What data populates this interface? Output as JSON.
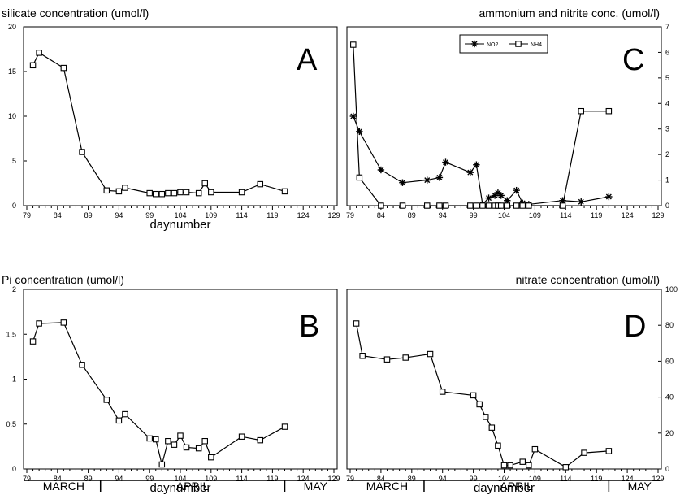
{
  "chart_data": [
    {
      "id": "A",
      "type": "line",
      "panel_label": "A",
      "title": "silicate concentration (umol/l)",
      "xlabel": "daynumber",
      "ylabel": "",
      "xlim": [
        79,
        129
      ],
      "ylim": [
        0,
        20
      ],
      "xticks": [
        79,
        84,
        89,
        94,
        99,
        104,
        109,
        114,
        119,
        124,
        129
      ],
      "yticks": [
        0,
        5,
        10,
        15,
        20
      ],
      "ytick_labels": [
        "0",
        "5",
        "10",
        "15",
        "20"
      ],
      "grid": false,
      "series": [
        {
          "marker": "square",
          "x": [
            80,
            81,
            85,
            88,
            92,
            94,
            95,
            99,
            100,
            101,
            102,
            103,
            104,
            105,
            107,
            108,
            109,
            114,
            117,
            121
          ],
          "y": [
            15.7,
            17.1,
            15.4,
            6.0,
            1.7,
            1.6,
            2.0,
            1.4,
            1.3,
            1.3,
            1.4,
            1.4,
            1.5,
            1.5,
            1.4,
            2.5,
            1.5,
            1.5,
            2.4,
            1.6
          ]
        }
      ]
    },
    {
      "id": "B",
      "type": "line",
      "panel_label": "B",
      "title": "Pi concentration (umol/l)",
      "xlabel": "daynumber",
      "ylabel": "",
      "xlim": [
        79,
        129
      ],
      "ylim": [
        0,
        2
      ],
      "xticks": [
        79,
        84,
        89,
        94,
        99,
        104,
        109,
        114,
        119,
        124,
        129
      ],
      "yticks": [
        0,
        0.5,
        1,
        1.5,
        2
      ],
      "ytick_labels": [
        "0",
        "0.5",
        "1",
        "1.5",
        "2"
      ],
      "grid": false,
      "series": [
        {
          "marker": "square",
          "x": [
            80,
            81,
            85,
            88,
            92,
            94,
            95,
            99,
            100,
            101,
            102,
            103,
            104,
            105,
            107,
            108,
            109,
            114,
            117,
            121
          ],
          "y": [
            1.42,
            1.62,
            1.63,
            1.16,
            0.77,
            0.54,
            0.61,
            0.34,
            0.33,
            0.05,
            0.31,
            0.27,
            0.37,
            0.24,
            0.23,
            0.31,
            0.13,
            0.36,
            0.32,
            0.47
          ]
        }
      ]
    },
    {
      "id": "C",
      "type": "line",
      "panel_label": "C",
      "title": "ammonium and nitrite conc. (umol/l)",
      "xlabel": "",
      "ylabel": "",
      "xlim": [
        79,
        129
      ],
      "ylim": [
        0,
        7
      ],
      "xticks": [
        79,
        84,
        89,
        94,
        99,
        104,
        109,
        114,
        119,
        124,
        129
      ],
      "yticks": [
        0,
        1,
        2,
        3,
        4,
        5,
        6,
        7
      ],
      "ytick_labels": [
        "0",
        "1",
        "2",
        "3",
        "4",
        "5",
        "6",
        "7"
      ],
      "yaxis_side": "right",
      "legend_position": "top-center",
      "grid": false,
      "series": [
        {
          "name": "NO2",
          "marker": "asterisk",
          "x": [
            79.5,
            80.5,
            84,
            87.5,
            91.5,
            93.5,
            94.5,
            98.5,
            99.5,
            100.5,
            101.5,
            102.5,
            103,
            103.5,
            104.5,
            106,
            107,
            108,
            113.5,
            116.5,
            121
          ],
          "y": [
            3.5,
            2.9,
            1.4,
            0.9,
            1.0,
            1.1,
            1.7,
            1.3,
            1.6,
            0.05,
            0.3,
            0.4,
            0.5,
            0.4,
            0.2,
            0.6,
            0.1,
            0.05,
            0.2,
            0.15,
            0.35
          ]
        },
        {
          "name": "NH4",
          "marker": "square",
          "x": [
            79.5,
            80.5,
            84,
            87.5,
            91.5,
            93.5,
            94.5,
            98.5,
            99.5,
            100.5,
            101.5,
            102.5,
            103,
            103.5,
            104.5,
            106,
            107,
            108,
            113.5,
            116.5,
            121
          ],
          "y": [
            6.3,
            1.1,
            0.0,
            0.0,
            0.0,
            0.0,
            0.0,
            0.0,
            0.0,
            0.0,
            0.0,
            0.0,
            0.0,
            0.0,
            0.0,
            0.0,
            0.0,
            0.0,
            0.0,
            3.7,
            3.7
          ]
        }
      ]
    },
    {
      "id": "D",
      "type": "line",
      "panel_label": "D",
      "title": "nitrate concentration (umol/l)",
      "xlabel": "daynumber",
      "ylabel": "",
      "xlim": [
        79,
        129
      ],
      "ylim": [
        0,
        100
      ],
      "xticks": [
        79,
        84,
        89,
        94,
        99,
        104,
        109,
        114,
        119,
        124,
        129
      ],
      "yticks": [
        0,
        20,
        40,
        60,
        80,
        100
      ],
      "ytick_labels": [
        "0",
        "20",
        "40",
        "60",
        "80",
        "100"
      ],
      "yaxis_side": "right",
      "grid": false,
      "series": [
        {
          "marker": "square",
          "x": [
            80,
            81,
            85,
            88,
            92,
            94,
            99,
            100,
            101,
            102,
            103,
            104,
            105,
            107,
            108,
            109,
            114,
            117,
            121
          ],
          "y": [
            81,
            63,
            61,
            62,
            64,
            43,
            41,
            36,
            29,
            23,
            13,
            2,
            2,
            4,
            2,
            11,
            1,
            9,
            10
          ]
        }
      ]
    }
  ],
  "month_bar": {
    "labels": [
      "MARCH",
      "APRIL",
      "MAY"
    ],
    "boundaries": [
      91,
      121
    ]
  }
}
